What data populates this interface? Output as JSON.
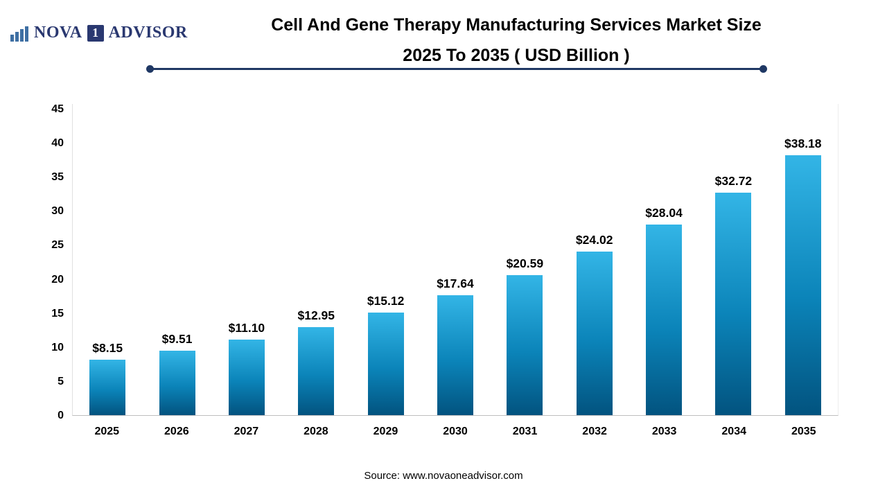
{
  "logo": {
    "text_nova": "NOVA",
    "text_one": "1",
    "text_advisor": "ADVISOR",
    "icon": "bar-chart-icon",
    "color": "#2a3870"
  },
  "header": {
    "title_line1": "Cell And Gene Therapy Manufacturing Services Market Size",
    "title_line2": "2025 To 2035 ( USD Billion )"
  },
  "source": {
    "text": "Source: www.novaoneadvisor.com"
  },
  "chart_data": {
    "type": "bar",
    "title": "Cell And Gene Therapy Manufacturing Services Market Size 2025 To 2035 ( USD Billion )",
    "categories": [
      "2025",
      "2026",
      "2027",
      "2028",
      "2029",
      "2030",
      "2031",
      "2032",
      "2033",
      "2034",
      "2035"
    ],
    "values": [
      8.15,
      9.51,
      11.1,
      12.95,
      15.12,
      17.64,
      20.59,
      24.02,
      28.04,
      32.72,
      38.18
    ],
    "value_labels": [
      "$8.15",
      "$9.51",
      "$11.10",
      "$12.95",
      "$15.12",
      "$17.64",
      "$20.59",
      "$24.02",
      "$28.04",
      "$32.72",
      "$38.18"
    ],
    "unit": "USD Billion",
    "xlabel": "",
    "ylabel": "",
    "ylim": [
      0,
      45
    ],
    "yticks": [
      0,
      5,
      10,
      15,
      20,
      25,
      30,
      35,
      40,
      45
    ],
    "grid": false,
    "legend": null,
    "bar_color_top": "#33b5e6",
    "bar_color_mid": "#0b84b9",
    "bar_color_bottom": "#02537f",
    "accent_color": "#1f3864"
  }
}
